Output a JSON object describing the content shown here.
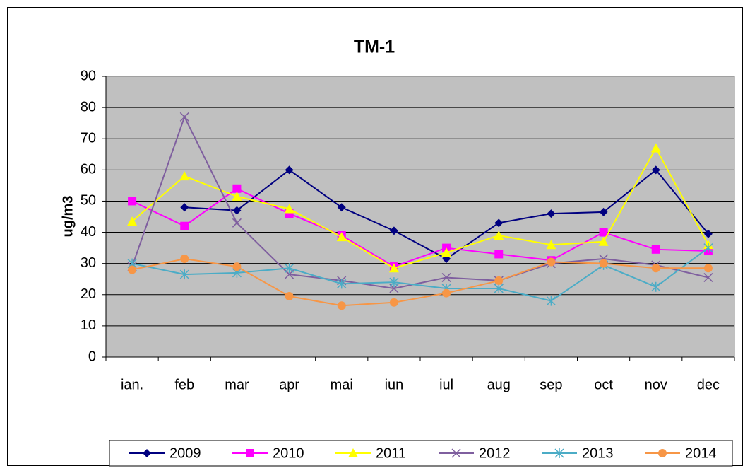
{
  "chart_data": {
    "type": "line",
    "title": "TM-1",
    "y_label": "ug/m3",
    "categories": [
      "ian.",
      "feb",
      "mar",
      "apr",
      "mai",
      "iun",
      "iul",
      "aug",
      "sep",
      "oct",
      "nov",
      "dec"
    ],
    "ylim": [
      0,
      90
    ],
    "yticks": [
      0,
      10,
      20,
      30,
      40,
      50,
      60,
      70,
      80,
      90
    ],
    "grid": true,
    "legend": "bottom",
    "series": [
      {
        "name": "2009",
        "color": "#000080",
        "marker": "diamond",
        "values": [
          null,
          48,
          47,
          60,
          48,
          40.5,
          31.5,
          43,
          46,
          46.5,
          60,
          39.5
        ]
      },
      {
        "name": "2010",
        "color": "#ff00ff",
        "marker": "square",
        "values": [
          50,
          42,
          54,
          46,
          39,
          29,
          35,
          33,
          31,
          40,
          34.5,
          34
        ]
      },
      {
        "name": "2011",
        "color": "#ffff00",
        "marker": "triangle",
        "values": [
          43.5,
          58,
          51.5,
          47.5,
          38.5,
          28.5,
          33.5,
          39,
          36,
          37,
          67,
          36
        ]
      },
      {
        "name": "2012",
        "color": "#7f5f9f",
        "marker": "x",
        "values": [
          29,
          77,
          43,
          26.5,
          24.5,
          22,
          25.5,
          24.5,
          30,
          31.5,
          29.5,
          25.5
        ]
      },
      {
        "name": "2013",
        "color": "#4bacc6",
        "marker": "asterisk",
        "values": [
          30,
          26.5,
          27,
          28.5,
          23.5,
          24,
          22,
          22,
          18,
          29.5,
          22.5,
          35
        ]
      },
      {
        "name": "2014",
        "color": "#f79646",
        "marker": "circle",
        "values": [
          28,
          31.5,
          29,
          19.5,
          16.5,
          17.5,
          20.5,
          24.5,
          30.5,
          30,
          28.5,
          28.5
        ]
      }
    ]
  }
}
